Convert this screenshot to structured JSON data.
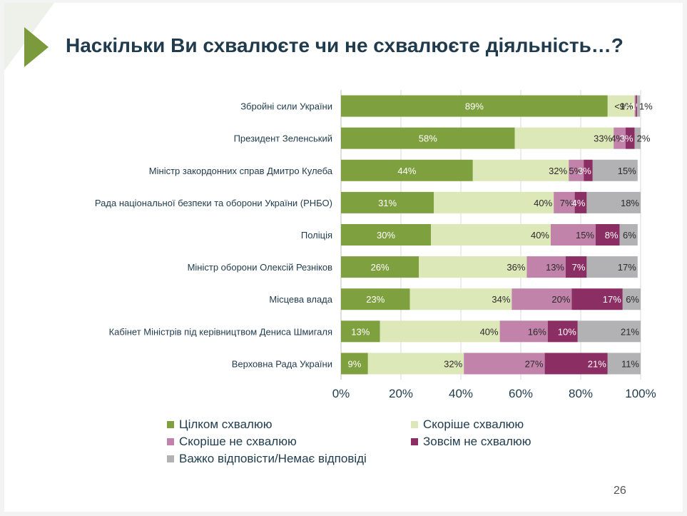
{
  "title": "Наскільки Ви схвалюєте чи не схвалюєте діяльність…?",
  "page_number": "26",
  "colors": {
    "fully_approve": "#7fa03e",
    "rather_approve": "#dde8b8",
    "rather_disapprove": "#c183aa",
    "fully_disapprove": "#8b2e63",
    "dont_know": "#b2b2b5"
  },
  "chart_data": {
    "type": "bar",
    "orientation": "horizontal",
    "stacked": true,
    "title": "Наскільки Ви схвалюєте чи не схвалюєте діяльність…?",
    "xlabel": "",
    "ylabel": "",
    "xlim": [
      0,
      100
    ],
    "grid": true,
    "legend_position": "bottom",
    "x_ticks": [
      "0%",
      "20%",
      "40%",
      "60%",
      "80%",
      "100%"
    ],
    "categories": [
      "Збройні сили України",
      "Президент Зеленський",
      "Міністр закордонних справ Дмитро Кулеба",
      "Рада національної безпеки та оборони України (РНБО)",
      "Поліція",
      "Міністр оборони Олексій Резніков",
      "Місцева влада",
      "Кабінет Міністрів під керівництвом Дениса Шмигаля",
      "Верховна Рада України"
    ],
    "series": [
      {
        "name": "Цілком схвалюю",
        "key": "fully_approve",
        "values": [
          89,
          58,
          44,
          31,
          30,
          26,
          23,
          13,
          9
        ],
        "labels": [
          "89%",
          "58%",
          "44%",
          "31%",
          "30%",
          "26%",
          "23%",
          "13%",
          "9%"
        ]
      },
      {
        "name": "Скоріше схвалюю",
        "key": "rather_approve",
        "values": [
          9,
          33,
          32,
          40,
          40,
          36,
          34,
          40,
          32
        ],
        "labels": [
          "9%",
          "33%",
          "32%",
          "40%",
          "40%",
          "36%",
          "34%",
          "40%",
          "32%"
        ]
      },
      {
        "name": "Скоріше не схвалюю",
        "key": "rather_disapprove",
        "values": [
          0.4,
          4,
          5,
          7,
          15,
          13,
          20,
          16,
          27
        ],
        "labels": [
          "<1%",
          "4%",
          "5%",
          "7%",
          "15%",
          "13%",
          "20%",
          "16%",
          "27%"
        ]
      },
      {
        "name": "Зовсім не схвалюю",
        "key": "fully_disapprove",
        "values": [
          0.4,
          3,
          3,
          4,
          8,
          7,
          17,
          10,
          21
        ],
        "labels": [
          "<1%",
          "3%",
          "3%",
          "4%",
          "8%",
          "7%",
          "17%",
          "10%",
          "21%"
        ]
      },
      {
        "name": "Важко відповісти/Немає відповіді",
        "key": "dont_know",
        "values": [
          1,
          2,
          15,
          18,
          6,
          17,
          6,
          21,
          11
        ],
        "labels": [
          "1%",
          "2%",
          "15%",
          "18%",
          "6%",
          "17%",
          "6%",
          "21%",
          "11%"
        ]
      }
    ]
  },
  "legend": [
    {
      "label": "Цілком схвалюю",
      "color": "#7fa03e"
    },
    {
      "label": "Скоріше схвалюю",
      "color": "#dde8b8"
    },
    {
      "label": "Скоріше не схвалюю",
      "color": "#c183aa"
    },
    {
      "label": "Зовсім не схвалюю",
      "color": "#8b2e63"
    },
    {
      "label": "Важко відповісти/Немає відповіді",
      "color": "#b2b2b5"
    }
  ]
}
